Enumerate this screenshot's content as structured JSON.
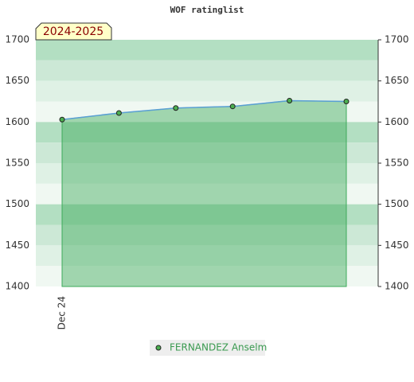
{
  "chart_data": {
    "type": "area",
    "title": "WOF ratinglist",
    "annotation": "2024-2025",
    "categories": [
      "Dec 24",
      null,
      null,
      null,
      null,
      null
    ],
    "series": [
      {
        "name": "FERNANDEZ Anselm",
        "color": "#5a9fd4",
        "fill": "#3daa5a",
        "marker": "#4caf50",
        "values": [
          1603,
          1611,
          1617,
          1619,
          1626,
          1625
        ]
      }
    ],
    "ylim": [
      1400,
      1700
    ],
    "yticks": [
      1400,
      1450,
      1500,
      1550,
      1600,
      1650,
      1700
    ]
  }
}
